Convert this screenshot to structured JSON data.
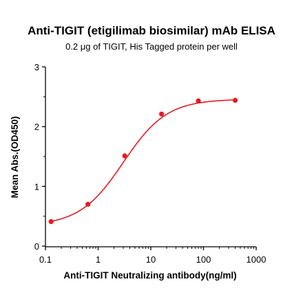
{
  "chart_data": {
    "type": "scatter",
    "title": "Anti-TIGIT (etigilimab biosimilar) mAb ELISA",
    "subtitle": "0.2 μg of TIGIT, His Tagged protein per well",
    "xlabel": "Anti-TIGIT Neutralizing antibody(ng/ml)",
    "ylabel": "Mean Abs.(OD450)",
    "x_scale": "log",
    "xlim": [
      0.1,
      1000
    ],
    "ylim": [
      0,
      3
    ],
    "x_ticks": [
      "0.1",
      "1",
      "10",
      "100",
      "1000"
    ],
    "x_tick_values": [
      0.1,
      1,
      10,
      100,
      1000
    ],
    "y_ticks": [
      "0",
      "1",
      "2",
      "3"
    ],
    "y_tick_values": [
      0,
      1,
      2,
      3
    ],
    "grid": false,
    "color": "#e8191f",
    "series": [
      {
        "x": [
          0.128,
          0.64,
          3.2,
          16,
          80,
          400
        ],
        "y": [
          0.41,
          0.7,
          1.51,
          2.21,
          2.43,
          2.44
        ]
      }
    ],
    "fit": {
      "model": "4PL",
      "bottom": 0.34,
      "top": 2.46,
      "ec50": 3.0,
      "hill": 1.05
    }
  }
}
